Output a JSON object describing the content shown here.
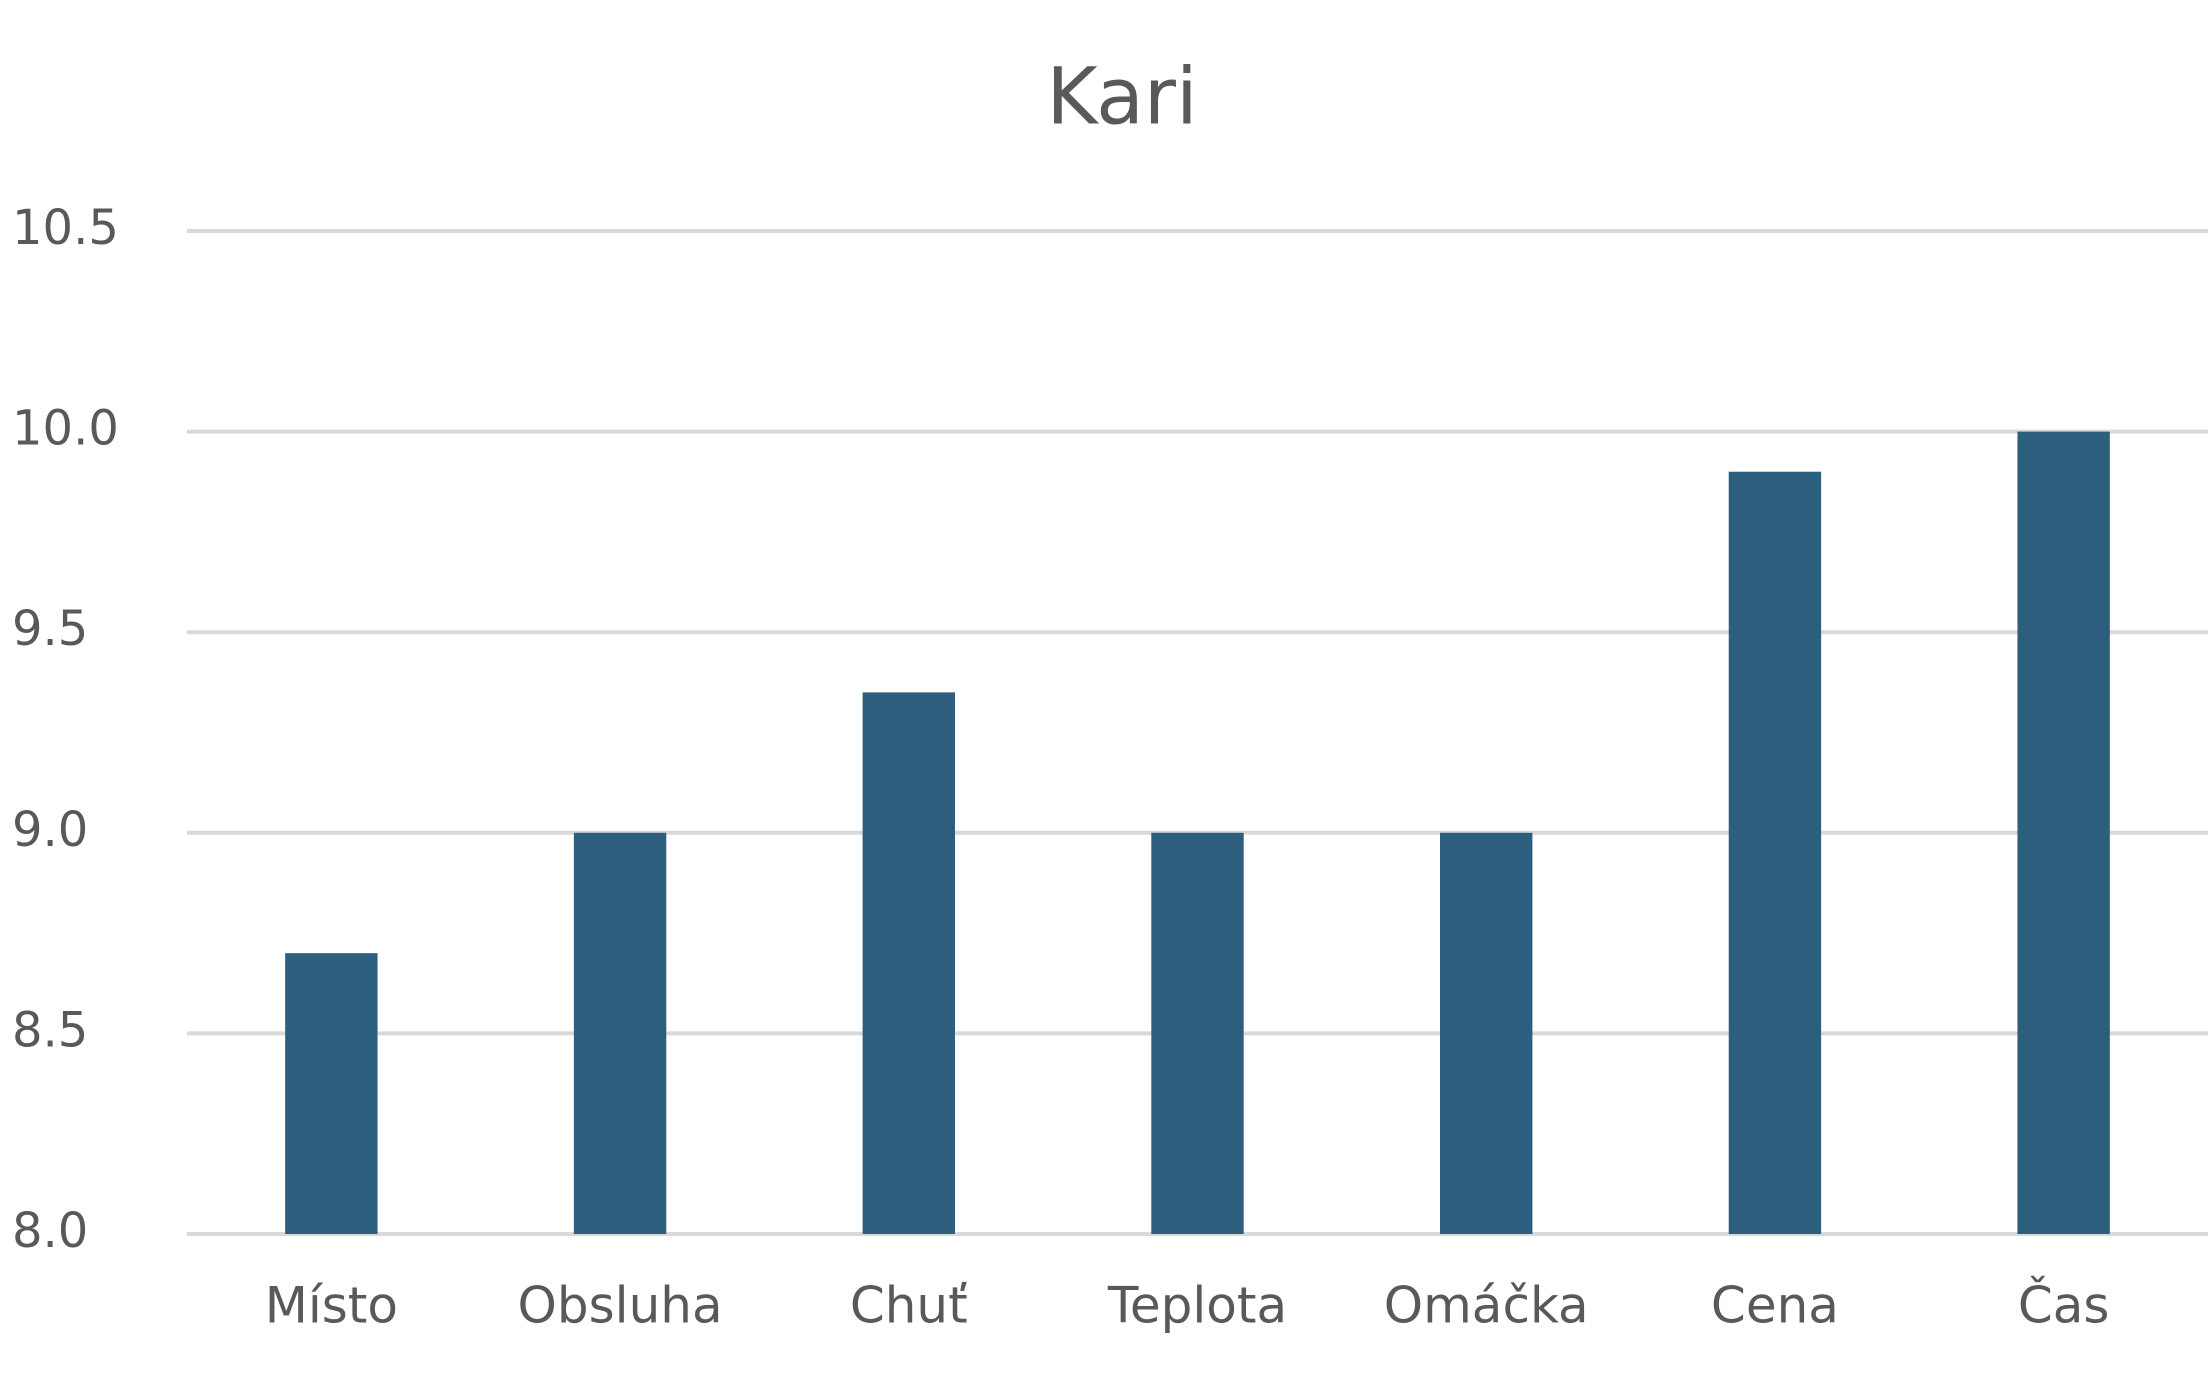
{
  "chart_data": {
    "type": "bar",
    "title": "Kari",
    "categories": [
      "Místo",
      "Obsluha",
      "Chuť",
      "Teplota",
      "Omáčka",
      "Cena",
      "Čas"
    ],
    "values": [
      8.7,
      9.0,
      9.35,
      9.0,
      9.0,
      9.9,
      10.0
    ],
    "color": "#2e5e7e",
    "ylim": [
      8.0,
      10.5
    ],
    "yticks": [
      {
        "value": 8,
        "label": "8.0"
      },
      8.5,
      {
        "value": 9,
        "label": "9.0"
      },
      9.5,
      {
        "value": 10,
        "label": "10.0"
      },
      10.5
    ],
    "grid": true
  }
}
